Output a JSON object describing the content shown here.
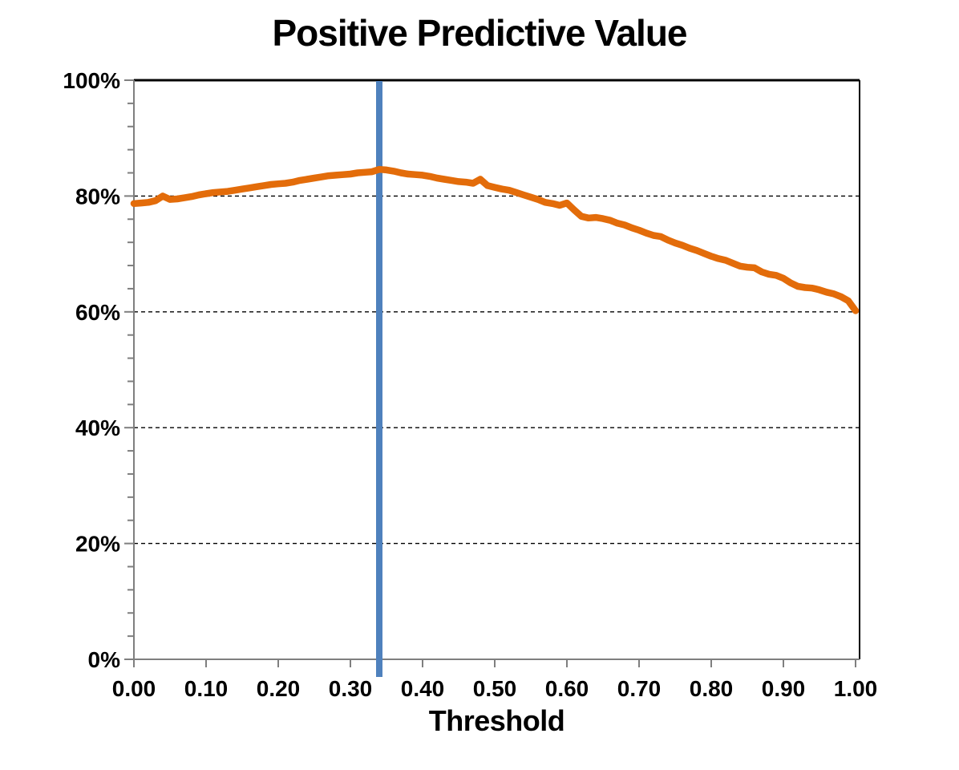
{
  "title": "Positive Predictive Value",
  "chart_data": {
    "type": "line",
    "title": "Positive Predictive Value",
    "xlabel": "Threshold",
    "ylabel": "",
    "xlim": [
      0,
      1.005
    ],
    "ylim": [
      0,
      100
    ],
    "grid": "horizontal dashed at y majors 20-80, solid top border at 100",
    "legend_position": "none",
    "x_tick_labels": [
      "0.00",
      "0.10",
      "0.20",
      "0.30",
      "0.40",
      "0.50",
      "0.60",
      "0.70",
      "0.80",
      "0.90",
      "1.00"
    ],
    "x_tick_values": [
      0,
      0.1,
      0.2,
      0.3,
      0.4,
      0.5,
      0.6,
      0.7,
      0.8,
      0.9,
      1.0
    ],
    "y_tick_labels": [
      "0%",
      "20%",
      "40%",
      "60%",
      "80%",
      "100%"
    ],
    "y_tick_values": [
      0,
      20,
      40,
      60,
      80,
      100
    ],
    "y_grid_values": [
      20,
      40,
      60,
      80
    ],
    "y_minor_tick_step": 4,
    "series_name": "Positive Predictive Value (%)",
    "line_color": "#E36C0A",
    "threshold_marker": {
      "x": 0.34,
      "color": "#4F81BD"
    },
    "axis_color": "#7F7F7F",
    "gridline_color": "#000000",
    "points": [
      [
        0.0,
        78.7
      ],
      [
        0.01,
        78.8
      ],
      [
        0.02,
        78.9
      ],
      [
        0.03,
        79.2
      ],
      [
        0.04,
        80.0
      ],
      [
        0.05,
        79.4
      ],
      [
        0.06,
        79.5
      ],
      [
        0.07,
        79.7
      ],
      [
        0.08,
        79.9
      ],
      [
        0.09,
        80.2
      ],
      [
        0.1,
        80.4
      ],
      [
        0.11,
        80.6
      ],
      [
        0.12,
        80.7
      ],
      [
        0.13,
        80.8
      ],
      [
        0.14,
        81.0
      ],
      [
        0.15,
        81.2
      ],
      [
        0.16,
        81.4
      ],
      [
        0.17,
        81.6
      ],
      [
        0.18,
        81.8
      ],
      [
        0.19,
        82.0
      ],
      [
        0.2,
        82.1
      ],
      [
        0.21,
        82.2
      ],
      [
        0.22,
        82.4
      ],
      [
        0.23,
        82.7
      ],
      [
        0.24,
        82.9
      ],
      [
        0.25,
        83.1
      ],
      [
        0.26,
        83.3
      ],
      [
        0.27,
        83.5
      ],
      [
        0.28,
        83.6
      ],
      [
        0.29,
        83.7
      ],
      [
        0.3,
        83.8
      ],
      [
        0.31,
        84.0
      ],
      [
        0.32,
        84.1
      ],
      [
        0.33,
        84.2
      ],
      [
        0.34,
        84.6
      ],
      [
        0.35,
        84.5
      ],
      [
        0.36,
        84.3
      ],
      [
        0.37,
        84.0
      ],
      [
        0.38,
        83.8
      ],
      [
        0.39,
        83.7
      ],
      [
        0.4,
        83.6
      ],
      [
        0.41,
        83.4
      ],
      [
        0.42,
        83.1
      ],
      [
        0.43,
        82.9
      ],
      [
        0.44,
        82.7
      ],
      [
        0.45,
        82.5
      ],
      [
        0.46,
        82.4
      ],
      [
        0.47,
        82.2
      ],
      [
        0.48,
        82.9
      ],
      [
        0.49,
        81.8
      ],
      [
        0.5,
        81.5
      ],
      [
        0.51,
        81.2
      ],
      [
        0.52,
        81.0
      ],
      [
        0.53,
        80.6
      ],
      [
        0.54,
        80.2
      ],
      [
        0.55,
        79.8
      ],
      [
        0.56,
        79.4
      ],
      [
        0.57,
        78.9
      ],
      [
        0.58,
        78.7
      ],
      [
        0.59,
        78.4
      ],
      [
        0.6,
        78.8
      ],
      [
        0.61,
        77.6
      ],
      [
        0.62,
        76.5
      ],
      [
        0.63,
        76.2
      ],
      [
        0.64,
        76.3
      ],
      [
        0.65,
        76.1
      ],
      [
        0.66,
        75.8
      ],
      [
        0.67,
        75.3
      ],
      [
        0.68,
        75.0
      ],
      [
        0.69,
        74.5
      ],
      [
        0.7,
        74.1
      ],
      [
        0.71,
        73.6
      ],
      [
        0.72,
        73.2
      ],
      [
        0.73,
        73.0
      ],
      [
        0.74,
        72.4
      ],
      [
        0.75,
        71.9
      ],
      [
        0.76,
        71.5
      ],
      [
        0.77,
        71.0
      ],
      [
        0.78,
        70.6
      ],
      [
        0.79,
        70.1
      ],
      [
        0.8,
        69.6
      ],
      [
        0.81,
        69.2
      ],
      [
        0.82,
        68.9
      ],
      [
        0.83,
        68.4
      ],
      [
        0.84,
        67.9
      ],
      [
        0.85,
        67.7
      ],
      [
        0.86,
        67.6
      ],
      [
        0.87,
        66.9
      ],
      [
        0.88,
        66.5
      ],
      [
        0.89,
        66.3
      ],
      [
        0.9,
        65.8
      ],
      [
        0.91,
        65.0
      ],
      [
        0.92,
        64.4
      ],
      [
        0.93,
        64.2
      ],
      [
        0.94,
        64.1
      ],
      [
        0.95,
        63.8
      ],
      [
        0.96,
        63.4
      ],
      [
        0.97,
        63.1
      ],
      [
        0.98,
        62.6
      ],
      [
        0.99,
        61.9
      ],
      [
        1.0,
        60.2
      ]
    ]
  }
}
